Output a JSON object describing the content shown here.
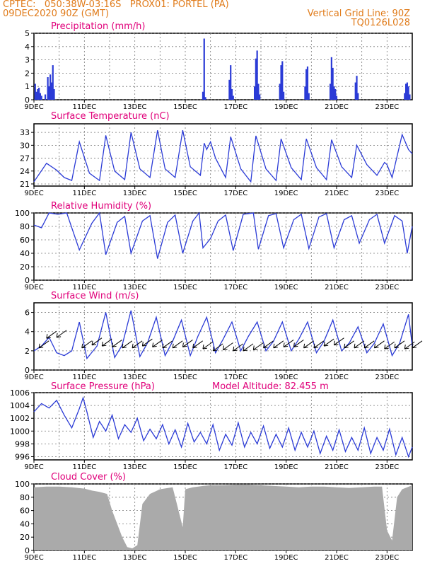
{
  "header": {
    "line1": "CPTEC:   050:38W-03:16S   PROX01: PORTEL (PA)",
    "line2": "09DEC2020 90Z (GMT)",
    "grid_note": "Vertical Grid Line: 90Z",
    "code": "TQ0126L028",
    "color": "#e07b1a"
  },
  "colors": {
    "title": "#e0007a",
    "line": "#2b3bd6",
    "bar": "#2b3bd6",
    "cloud": "#aaaaaa",
    "arrow": "#000000"
  },
  "x_axis": {
    "start": "09DEC2020",
    "end": "24DEC2020",
    "tick_labels": [
      "9DEC",
      "11DEC",
      "13DEC",
      "15DEC",
      "17DEC",
      "19DEC",
      "21DEC",
      "23DEC"
    ],
    "tick_days": [
      9,
      11,
      13,
      15,
      17,
      19,
      21,
      23
    ]
  },
  "chart_data": [
    {
      "type": "bar",
      "title": "Precipitation (mm/h)",
      "ylim": [
        0,
        5
      ],
      "yticks": [
        0,
        1,
        2,
        3,
        4,
        5
      ],
      "bars": [
        [
          9.05,
          1.2
        ],
        [
          9.1,
          0.6
        ],
        [
          9.15,
          0.8
        ],
        [
          9.2,
          0.9
        ],
        [
          9.25,
          0.5
        ],
        [
          9.3,
          0.3
        ],
        [
          9.45,
          0.4
        ],
        [
          9.55,
          1.7
        ],
        [
          9.6,
          1.0
        ],
        [
          9.65,
          1.9
        ],
        [
          9.7,
          1.3
        ],
        [
          9.75,
          2.6
        ],
        [
          9.8,
          0.8
        ],
        [
          15.7,
          0.6
        ],
        [
          15.75,
          4.6
        ],
        [
          15.8,
          0.2
        ],
        [
          16.75,
          1.5
        ],
        [
          16.8,
          2.6
        ],
        [
          16.85,
          0.8
        ],
        [
          16.9,
          0.3
        ],
        [
          17.75,
          1.0
        ],
        [
          17.8,
          3.1
        ],
        [
          17.85,
          3.7
        ],
        [
          17.9,
          1.2
        ],
        [
          17.95,
          0.4
        ],
        [
          18.75,
          1.2
        ],
        [
          18.8,
          2.6
        ],
        [
          18.85,
          2.9
        ],
        [
          18.9,
          0.6
        ],
        [
          19.75,
          1.0
        ],
        [
          19.8,
          2.3
        ],
        [
          19.85,
          2.5
        ],
        [
          19.9,
          0.5
        ],
        [
          20.75,
          1.2
        ],
        [
          20.8,
          3.2
        ],
        [
          20.85,
          2.4
        ],
        [
          20.9,
          1.0
        ],
        [
          20.95,
          0.8
        ],
        [
          21.0,
          0.3
        ],
        [
          21.75,
          1.3
        ],
        [
          21.8,
          1.8
        ],
        [
          21.85,
          0.5
        ],
        [
          23.7,
          0.5
        ],
        [
          23.75,
          1.2
        ],
        [
          23.8,
          1.3
        ],
        [
          23.85,
          1.0
        ],
        [
          23.9,
          0.4
        ]
      ]
    },
    {
      "type": "line",
      "title": "Surface Temperature (nC)",
      "ylim": [
        20.5,
        35
      ],
      "yticks": [
        21,
        24,
        27,
        30,
        33
      ],
      "x": [
        9.0,
        9.5,
        9.9,
        10.2,
        10.5,
        10.8,
        11.2,
        11.6,
        11.85,
        12.2,
        12.6,
        12.85,
        13.2,
        13.6,
        13.9,
        14.2,
        14.6,
        14.9,
        15.2,
        15.6,
        15.75,
        15.85,
        16.0,
        16.2,
        16.6,
        16.8,
        17.2,
        17.6,
        17.8,
        18.2,
        18.6,
        18.8,
        19.2,
        19.6,
        19.8,
        20.2,
        20.6,
        20.8,
        21.2,
        21.6,
        21.8,
        22.2,
        22.6,
        22.9,
        23.0,
        23.2,
        23.6,
        23.85,
        24.0
      ],
      "values": [
        21.5,
        25.8,
        24.2,
        22.5,
        21.8,
        30.8,
        23.5,
        21.8,
        32.3,
        24.0,
        22.0,
        33.0,
        24.5,
        22.5,
        33.5,
        24.5,
        22.5,
        33.5,
        25.0,
        23.0,
        30.5,
        29.0,
        30.8,
        27.0,
        22.5,
        32.0,
        24.5,
        21.5,
        32.2,
        24.5,
        21.8,
        31.5,
        24.8,
        22.0,
        31.5,
        24.8,
        22.0,
        31.3,
        25.0,
        22.5,
        30.0,
        25.5,
        23.0,
        26.0,
        25.5,
        22.5,
        32.5,
        29.0,
        28.0
      ]
    },
    {
      "type": "line",
      "title": "Relative Humidity (%)",
      "ylim": [
        0,
        100
      ],
      "yticks": [
        0,
        20,
        40,
        60,
        80,
        100
      ],
      "x": [
        9.0,
        9.3,
        9.6,
        9.95,
        10.3,
        10.8,
        11.3,
        11.6,
        11.85,
        12.3,
        12.6,
        12.85,
        13.3,
        13.6,
        13.9,
        14.3,
        14.6,
        14.9,
        15.3,
        15.55,
        15.7,
        16.0,
        16.3,
        16.6,
        16.9,
        17.3,
        17.7,
        17.9,
        18.3,
        18.6,
        18.9,
        19.3,
        19.6,
        19.9,
        20.3,
        20.6,
        20.9,
        21.3,
        21.6,
        21.9,
        22.3,
        22.6,
        22.9,
        23.3,
        23.6,
        23.8,
        24.0
      ],
      "values": [
        82,
        78,
        100,
        98,
        100,
        45,
        85,
        100,
        38,
        86,
        95,
        40,
        88,
        96,
        32,
        86,
        97,
        40,
        88,
        100,
        48,
        62,
        88,
        97,
        44,
        98,
        100,
        46,
        96,
        99,
        48,
        90,
        98,
        47,
        94,
        99,
        48,
        90,
        96,
        55,
        90,
        98,
        55,
        96,
        88,
        40,
        80
      ]
    },
    {
      "type": "line",
      "title": "Surface Wind (m/s)",
      "ylim": [
        0,
        7
      ],
      "yticks": [
        0,
        2,
        4,
        6
      ],
      "x": [
        9.0,
        9.3,
        9.6,
        9.9,
        10.2,
        10.5,
        10.8,
        11.1,
        11.5,
        11.85,
        12.2,
        12.5,
        12.85,
        13.2,
        13.5,
        13.85,
        14.2,
        14.5,
        14.85,
        15.2,
        15.5,
        15.85,
        16.2,
        16.5,
        16.85,
        17.2,
        17.5,
        17.85,
        18.2,
        18.5,
        18.85,
        19.2,
        19.5,
        19.85,
        20.2,
        20.5,
        20.85,
        21.2,
        21.5,
        21.85,
        22.2,
        22.5,
        22.85,
        23.2,
        23.5,
        23.85,
        24.0
      ],
      "values": [
        2.0,
        2.5,
        3.4,
        1.8,
        1.5,
        2.0,
        5.0,
        1.2,
        2.5,
        6.0,
        1.3,
        2.6,
        6.2,
        1.4,
        2.8,
        5.5,
        1.5,
        3.0,
        5.2,
        1.5,
        3.5,
        5.5,
        1.8,
        3.2,
        5.0,
        2.0,
        3.5,
        5.0,
        2.0,
        3.0,
        5.0,
        2.0,
        3.2,
        5.0,
        1.8,
        3.0,
        5.2,
        2.0,
        2.8,
        4.5,
        1.8,
        2.8,
        4.8,
        1.5,
        2.8,
        5.8,
        2.5
      ],
      "arrows_x": [
        9.2,
        9.5,
        9.9,
        10.9,
        11.3,
        11.7,
        12.1,
        12.5,
        12.9,
        13.3,
        13.7,
        14.1,
        14.5,
        14.9,
        15.3,
        15.7,
        16.1,
        16.5,
        16.9,
        17.3,
        17.7,
        18.1,
        18.5,
        18.9,
        19.3,
        19.7,
        20.1,
        20.5,
        20.9,
        21.3,
        21.7,
        22.1,
        22.5,
        22.9,
        23.3,
        23.7,
        24.0
      ],
      "arrows_y": [
        2.3,
        3.3,
        3.4,
        2.3,
        2.6,
        2.5,
        2.4,
        2.3,
        2.3,
        2.5,
        2.4,
        2.3,
        2.3,
        2.4,
        2.3,
        2.2,
        2.0,
        2.1,
        2.0,
        2.0,
        2.1,
        2.3,
        2.3,
        2.4,
        2.4,
        2.3,
        2.3,
        2.5,
        2.6,
        2.3,
        2.3,
        2.3,
        2.3,
        2.2,
        2.3,
        2.2,
        2.3
      ]
    },
    {
      "type": "line",
      "title": "Surface Pressure (hPa)",
      "annotation": "Model Altitude: 82.455 m",
      "ylim": [
        995.5,
        1006
      ],
      "yticks": [
        996,
        998,
        1000,
        1002,
        1004,
        1006
      ],
      "x": [
        9.0,
        9.3,
        9.6,
        9.9,
        10.2,
        10.5,
        10.8,
        10.95,
        11.1,
        11.35,
        11.6,
        11.85,
        12.1,
        12.35,
        12.6,
        12.85,
        13.1,
        13.35,
        13.6,
        13.85,
        14.1,
        14.35,
        14.6,
        14.85,
        15.1,
        15.35,
        15.6,
        15.85,
        16.1,
        16.35,
        16.6,
        16.85,
        17.1,
        17.35,
        17.6,
        17.85,
        18.1,
        18.35,
        18.6,
        18.85,
        19.1,
        19.35,
        19.6,
        19.85,
        20.1,
        20.35,
        20.6,
        20.85,
        21.1,
        21.35,
        21.6,
        21.85,
        22.1,
        22.35,
        22.6,
        22.85,
        23.1,
        23.35,
        23.6,
        23.85,
        24.0
      ],
      "values": [
        1003.0,
        1004.3,
        1003.6,
        1004.8,
        1002.5,
        1000.5,
        1003.5,
        1005.2,
        1003.0,
        999.0,
        1001.5,
        1000.0,
        1002.5,
        998.8,
        1001.0,
        999.8,
        1002.0,
        998.5,
        1000.3,
        998.8,
        1001.0,
        998.0,
        1000.2,
        997.5,
        1001.2,
        998.3,
        999.8,
        998.0,
        1001.0,
        997.0,
        999.5,
        997.8,
        1001.3,
        997.5,
        999.8,
        998.0,
        1000.8,
        997.3,
        999.5,
        997.5,
        1000.5,
        997.0,
        999.8,
        997.5,
        1000.0,
        996.5,
        999.2,
        997.0,
        1000.2,
        996.8,
        999.0,
        997.0,
        1000.5,
        996.5,
        999.0,
        997.0,
        1000.3,
        996.3,
        999.0,
        996.0,
        997.5
      ]
    },
    {
      "type": "bar",
      "title": "Cloud Cover (%)",
      "ylim": [
        0,
        100
      ],
      "yticks": [
        0,
        20,
        40,
        60,
        80,
        100
      ],
      "x": [
        9.0,
        9.5,
        10.0,
        10.5,
        11.0,
        11.3,
        11.6,
        11.9,
        12.1,
        12.3,
        12.5,
        12.7,
        12.9,
        13.1,
        13.3,
        13.6,
        14.0,
        14.5,
        14.9,
        15.0,
        15.3,
        15.7,
        16.0,
        16.5,
        17.0,
        17.5,
        18.0,
        18.5,
        19.0,
        19.5,
        20.0,
        20.5,
        21.0,
        21.5,
        22.0,
        22.5,
        22.8,
        23.0,
        23.2,
        23.4,
        23.6,
        23.8,
        24.0
      ],
      "values": [
        95,
        96,
        96,
        95,
        93,
        90,
        88,
        85,
        60,
        40,
        20,
        5,
        3,
        8,
        70,
        85,
        92,
        95,
        35,
        92,
        95,
        97,
        98,
        98,
        99,
        99,
        98,
        97,
        96,
        95,
        96,
        96,
        95,
        94,
        95,
        96,
        96,
        30,
        15,
        80,
        92,
        95,
        98
      ]
    }
  ]
}
